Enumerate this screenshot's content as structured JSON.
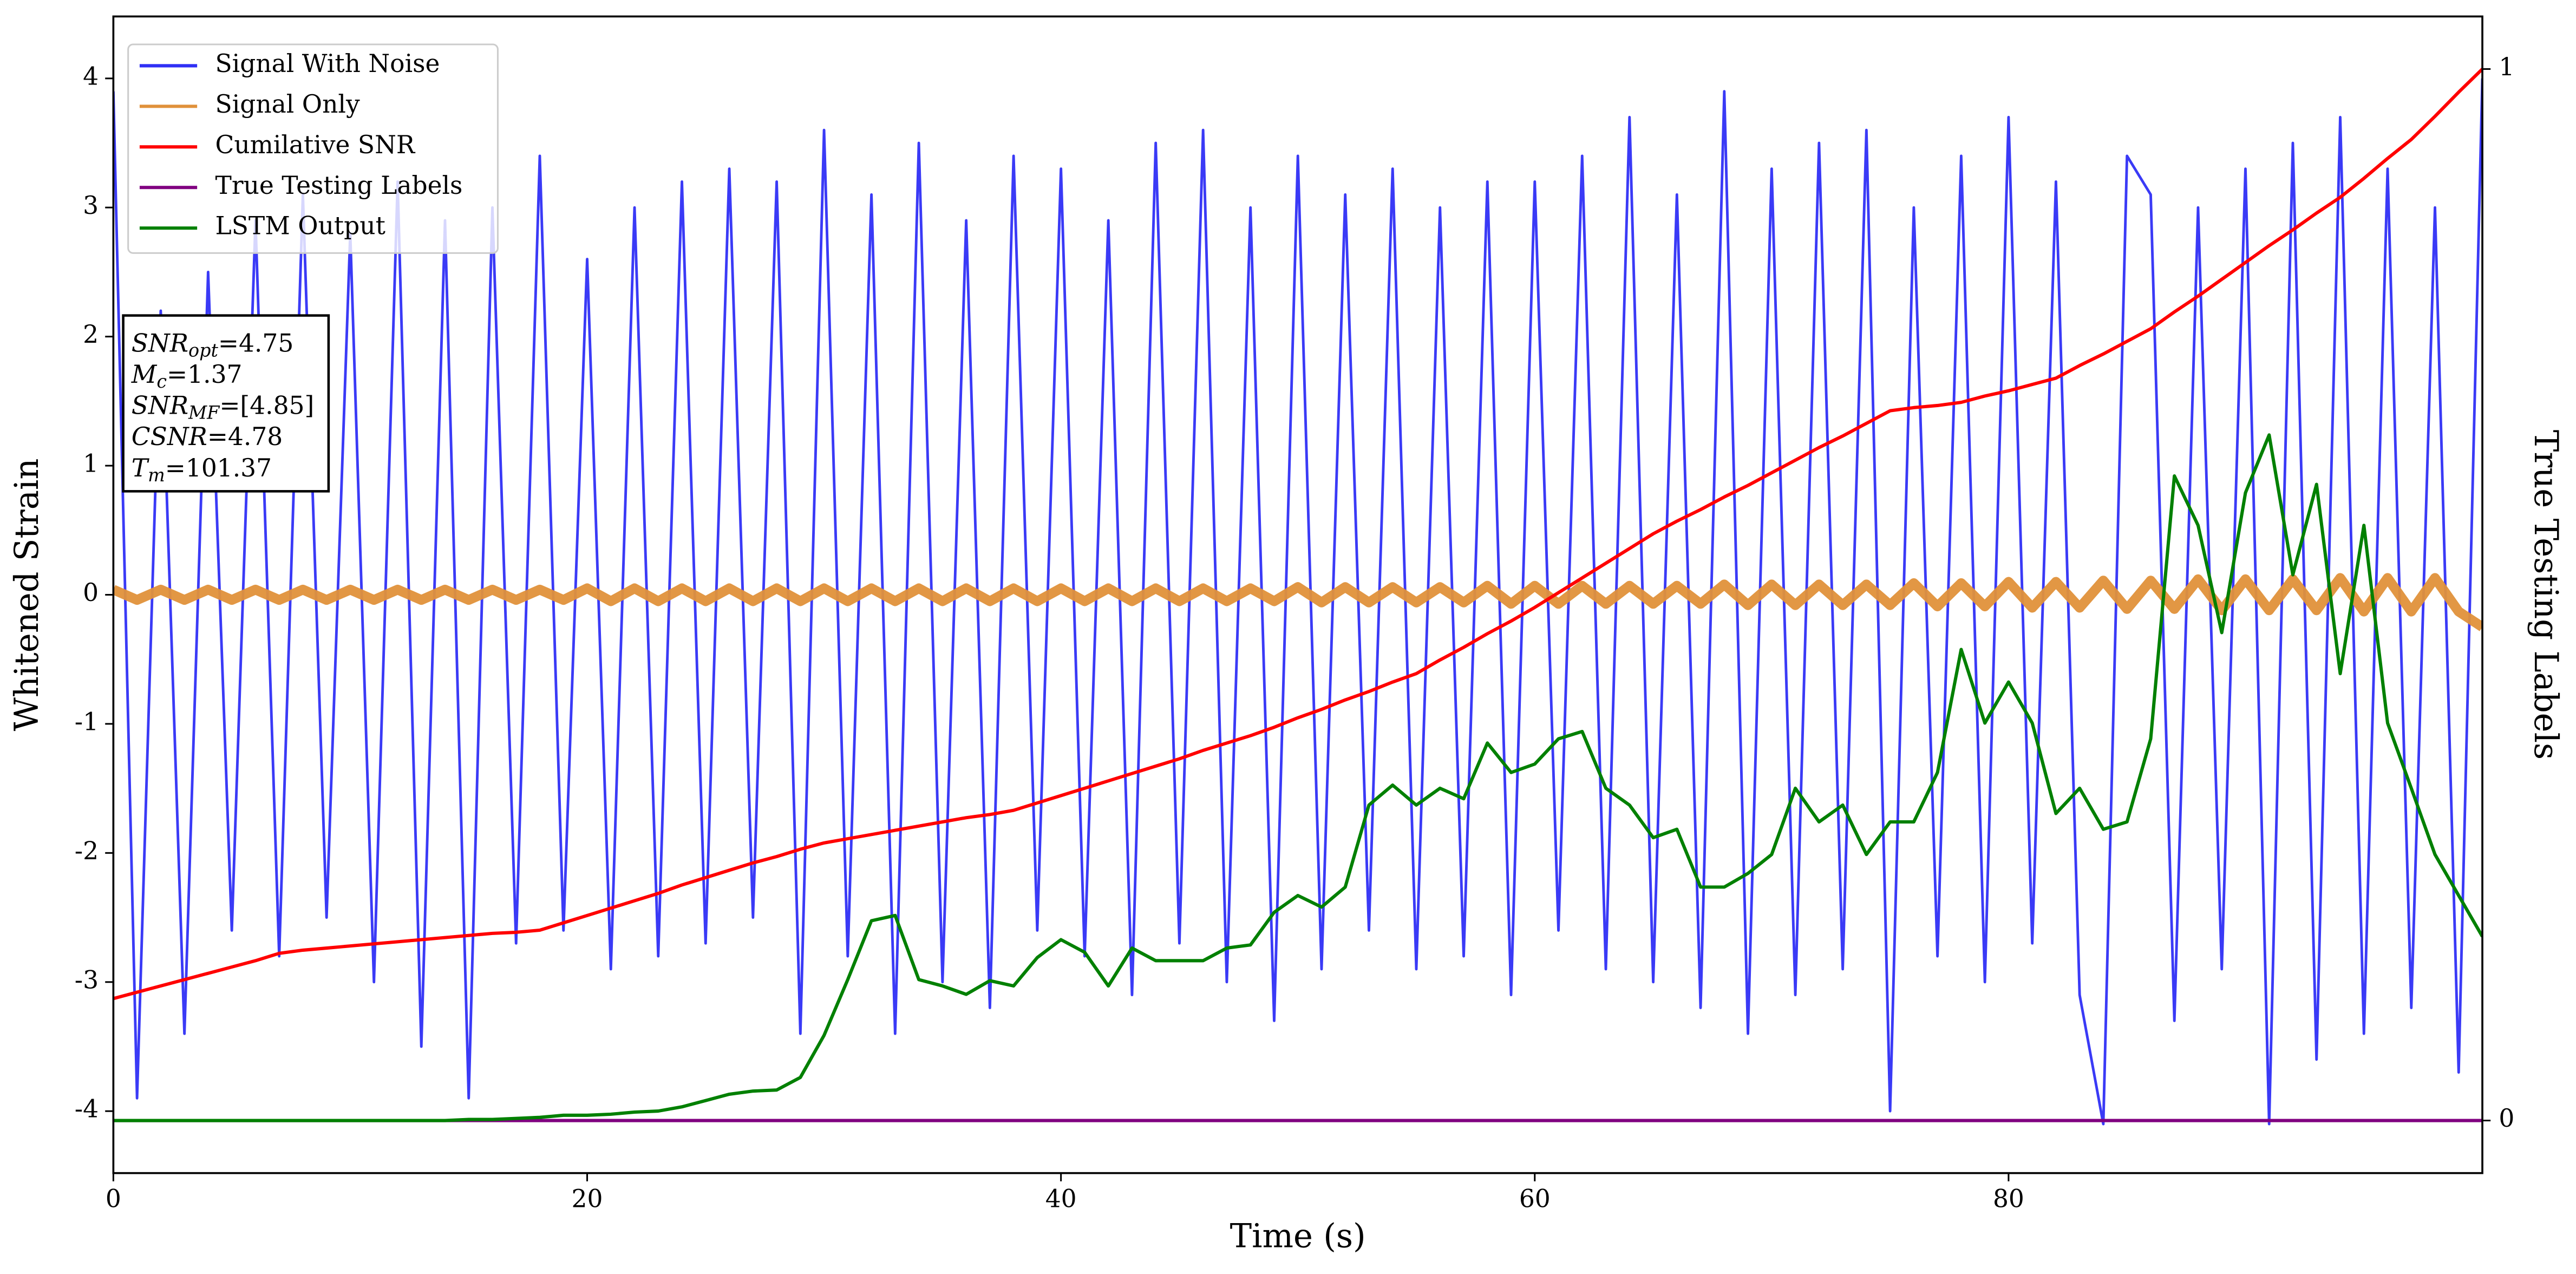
{
  "chart_data": {
    "type": "line",
    "x_label": "Time (s)",
    "y_label": "Whitened Strain",
    "y2_label": "True Testing Labels",
    "xlim": [
      0,
      100
    ],
    "xticks": [
      0,
      20,
      40,
      60,
      80
    ],
    "ylim": [
      -4.48,
      4.48
    ],
    "yticks": [
      -4,
      -3,
      -2,
      -1,
      0,
      1,
      2,
      3,
      4
    ],
    "y2lim": [
      -0.05,
      1.05
    ],
    "y2ticks": [
      0,
      1
    ],
    "legend": "upper-left",
    "x": [
      0,
      1,
      2,
      3,
      4,
      5,
      6,
      7,
      8,
      9,
      10,
      11,
      12,
      13,
      14,
      15,
      16,
      17,
      18,
      19,
      20,
      21,
      22,
      23,
      24,
      25,
      26,
      27,
      28,
      29,
      30,
      31,
      32,
      33,
      34,
      35,
      36,
      37,
      38,
      39,
      40,
      41,
      42,
      43,
      44,
      45,
      46,
      47,
      48,
      49,
      50,
      51,
      52,
      53,
      54,
      55,
      56,
      57,
      58,
      59,
      60,
      61,
      62,
      63,
      64,
      65,
      66,
      67,
      68,
      69,
      70,
      71,
      72,
      73,
      74,
      75,
      76,
      77,
      78,
      79,
      80,
      81,
      82,
      83,
      84,
      85,
      86,
      87,
      88,
      89,
      90,
      91,
      92,
      93,
      94,
      95,
      96,
      97,
      98,
      99,
      100
    ],
    "series": [
      {
        "name": "Signal With Noise",
        "color": "#2f2ff5",
        "width": 1.6,
        "values": [
          3.9,
          -3.9,
          2.2,
          -3.4,
          2.5,
          -2.6,
          2.9,
          -2.8,
          3.1,
          -2.5,
          2.8,
          -3.0,
          3.2,
          -3.5,
          2.9,
          -3.9,
          3.0,
          -2.7,
          3.4,
          -2.6,
          2.6,
          -2.9,
          3.0,
          -2.8,
          3.2,
          -2.7,
          3.3,
          -2.5,
          3.2,
          -3.4,
          3.6,
          -2.8,
          3.1,
          -3.4,
          3.5,
          -3.0,
          2.9,
          -3.2,
          3.4,
          -2.6,
          3.3,
          -2.8,
          2.9,
          -3.1,
          3.5,
          -2.7,
          3.6,
          -3.0,
          3.0,
          -3.3,
          3.4,
          -2.9,
          3.1,
          -2.6,
          3.3,
          -2.9,
          3.0,
          -2.8,
          3.2,
          -3.1,
          3.2,
          -2.6,
          3.4,
          -2.9,
          3.7,
          -3.0,
          3.1,
          -3.2,
          3.9,
          -3.4,
          3.3,
          -3.1,
          3.5,
          -2.9,
          3.6,
          -4.0,
          3.0,
          -2.8,
          3.4,
          -3.0,
          3.7,
          -2.7,
          3.2,
          -3.1,
          -4.1,
          3.4,
          3.1,
          -3.3,
          3.0,
          -2.9,
          3.3,
          -4.1,
          3.5,
          -3.6,
          3.7,
          -3.4,
          3.3,
          -3.2,
          3.0,
          -3.7,
          4.0
        ]
      },
      {
        "name": "Signal Only",
        "color": "#e0913a",
        "width": 6,
        "values": [
          0.04,
          -0.04,
          0.04,
          -0.04,
          0.04,
          -0.04,
          0.04,
          -0.04,
          0.04,
          -0.04,
          0.04,
          -0.04,
          0.04,
          -0.04,
          0.04,
          -0.04,
          0.04,
          -0.04,
          0.04,
          -0.04,
          0.05,
          -0.05,
          0.05,
          -0.05,
          0.05,
          -0.05,
          0.05,
          -0.05,
          0.05,
          -0.05,
          0.05,
          -0.05,
          0.05,
          -0.05,
          0.05,
          -0.05,
          0.05,
          -0.05,
          0.05,
          -0.05,
          0.05,
          -0.05,
          0.05,
          -0.05,
          0.05,
          -0.05,
          0.05,
          -0.05,
          0.05,
          -0.05,
          0.06,
          -0.06,
          0.06,
          -0.06,
          0.06,
          -0.06,
          0.06,
          -0.06,
          0.07,
          -0.07,
          0.07,
          -0.07,
          0.07,
          -0.07,
          0.07,
          -0.07,
          0.07,
          -0.07,
          0.08,
          -0.08,
          0.08,
          -0.08,
          0.08,
          -0.08,
          0.08,
          -0.08,
          0.09,
          -0.09,
          0.09,
          -0.09,
          0.1,
          -0.1,
          0.1,
          -0.1,
          0.11,
          -0.11,
          0.11,
          -0.11,
          0.12,
          -0.12,
          0.12,
          -0.12,
          0.12,
          -0.12,
          0.13,
          -0.13,
          0.13,
          -0.13,
          0.13,
          -0.13,
          -0.25
        ]
      },
      {
        "name": "Cumilative SNR",
        "color": "#ff0000",
        "width": 2,
        "axis": "y2",
        "values": [
          0.116,
          0.122,
          0.128,
          0.134,
          0.14,
          0.146,
          0.152,
          0.159,
          0.162,
          0.164,
          0.166,
          0.168,
          0.17,
          0.172,
          0.174,
          0.176,
          0.178,
          0.179,
          0.181,
          0.188,
          0.195,
          0.202,
          0.209,
          0.216,
          0.224,
          0.231,
          0.238,
          0.245,
          0.251,
          0.258,
          0.264,
          0.268,
          0.272,
          0.276,
          0.28,
          0.284,
          0.288,
          0.291,
          0.295,
          0.302,
          0.309,
          0.316,
          0.323,
          0.33,
          0.337,
          0.344,
          0.352,
          0.359,
          0.366,
          0.374,
          0.383,
          0.391,
          0.4,
          0.408,
          0.417,
          0.425,
          0.438,
          0.45,
          0.463,
          0.475,
          0.488,
          0.502,
          0.516,
          0.53,
          0.544,
          0.558,
          0.57,
          0.581,
          0.593,
          0.604,
          0.616,
          0.628,
          0.64,
          0.651,
          0.663,
          0.675,
          0.678,
          0.68,
          0.683,
          0.689,
          0.694,
          0.7,
          0.706,
          0.718,
          0.729,
          0.741,
          0.753,
          0.769,
          0.784,
          0.8,
          0.816,
          0.832,
          0.847,
          0.863,
          0.878,
          0.896,
          0.915,
          0.933,
          0.955,
          0.978,
          1.0
        ]
      },
      {
        "name": "True Testing Labels",
        "color": "#800080",
        "width": 2,
        "axis": "y2",
        "values": [
          0,
          0,
          0,
          0,
          0,
          0,
          0,
          0,
          0,
          0,
          0,
          0,
          0,
          0,
          0,
          0,
          0,
          0,
          0,
          0,
          0,
          0,
          0,
          0,
          0,
          0,
          0,
          0,
          0,
          0,
          0,
          0,
          0,
          0,
          0,
          0,
          0,
          0,
          0,
          0,
          0,
          0,
          0,
          0,
          0,
          0,
          0,
          0,
          0,
          0,
          0,
          0,
          0,
          0,
          0,
          0,
          0,
          0,
          0,
          0,
          0,
          0,
          0,
          0,
          0,
          0,
          0,
          0,
          0,
          0,
          0,
          0,
          0,
          0,
          0,
          0,
          0,
          0,
          0,
          0,
          0,
          0,
          0,
          0,
          0,
          0,
          0,
          0,
          0,
          0,
          0,
          0,
          0,
          0,
          0,
          0,
          0,
          0,
          0,
          0,
          0
        ]
      },
      {
        "name": "LSTM Output",
        "color": "#008000",
        "width": 2,
        "axis": "y2",
        "values": [
          0,
          0,
          0,
          0,
          0,
          0,
          0,
          0,
          0,
          0,
          0,
          0,
          0,
          0,
          0,
          0.001,
          0.001,
          0.002,
          0.003,
          0.005,
          0.005,
          0.006,
          0.008,
          0.009,
          0.013,
          0.019,
          0.025,
          0.028,
          0.029,
          0.041,
          0.081,
          0.134,
          0.19,
          0.195,
          0.134,
          0.128,
          0.12,
          0.133,
          0.128,
          0.155,
          0.172,
          0.16,
          0.128,
          0.164,
          0.152,
          0.152,
          0.152,
          0.164,
          0.167,
          0.198,
          0.214,
          0.203,
          0.222,
          0.3,
          0.319,
          0.3,
          0.316,
          0.306,
          0.359,
          0.331,
          0.339,
          0.363,
          0.37,
          0.316,
          0.3,
          0.269,
          0.277,
          0.222,
          0.222,
          0.235,
          0.253,
          0.316,
          0.284,
          0.3,
          0.253,
          0.284,
          0.284,
          0.331,
          0.448,
          0.378,
          0.417,
          0.378,
          0.292,
          0.316,
          0.277,
          0.284,
          0.363,
          0.613,
          0.566,
          0.464,
          0.597,
          0.652,
          0.519,
          0.605,
          0.425,
          0.566,
          0.378,
          0.316,
          0.253,
          0.214,
          0.175
        ]
      }
    ],
    "annotation": [
      {
        "name": "SNR",
        "sub": "opt",
        "text": "=4.75"
      },
      {
        "name": "M",
        "sub": "c",
        "text": "=1.37"
      },
      {
        "name": "SNR",
        "sub": "MF",
        "text": "=[4.85]"
      },
      {
        "name": "CSNR",
        "sub": null,
        "text": "=4.78"
      },
      {
        "name": "T",
        "sub": "m",
        "text": "=101.37"
      }
    ]
  }
}
